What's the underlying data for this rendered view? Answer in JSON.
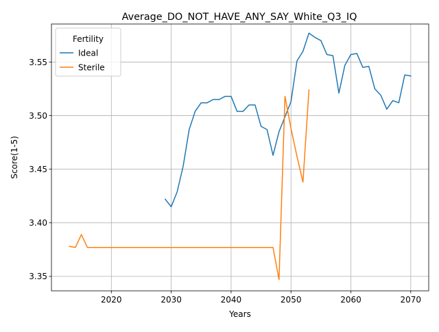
{
  "chart_data": {
    "type": "line",
    "title": "Average_DO_NOT_HAVE_ANY_SAY_White_Q3_IQ",
    "xlabel": "Years",
    "ylabel": "Score(1-5)",
    "xlim": [
      2010.0,
      2073.0
    ],
    "ylim": [
      3.3365,
      3.5855
    ],
    "xticks": [
      2020,
      2030,
      2040,
      2050,
      2060,
      2070
    ],
    "yticks": [
      3.35,
      3.4,
      3.45,
      3.5,
      3.55
    ],
    "ytick_labels": [
      "3.35",
      "3.40",
      "3.45",
      "3.50",
      "3.55"
    ],
    "grid": true,
    "legend": {
      "title": "Fertility",
      "placement": "top-left"
    },
    "series": [
      {
        "name": "Ideal",
        "color": "#1f77b4",
        "x": [
          2029,
          2030,
          2031,
          2032,
          2033,
          2034,
          2035,
          2036,
          2037,
          2038,
          2039,
          2040,
          2041,
          2042,
          2043,
          2044,
          2045,
          2046,
          2047,
          2048,
          2049,
          2050,
          2051,
          2052,
          2053,
          2054,
          2055,
          2056,
          2057,
          2058,
          2059,
          2060,
          2061,
          2062,
          2063,
          2064,
          2065,
          2066,
          2067,
          2068,
          2069,
          2070
        ],
        "y": [
          3.422,
          3.415,
          3.429,
          3.453,
          3.487,
          3.504,
          3.512,
          3.512,
          3.515,
          3.515,
          3.518,
          3.518,
          3.504,
          3.504,
          3.51,
          3.51,
          3.49,
          3.487,
          3.463,
          3.485,
          3.499,
          3.513,
          3.551,
          3.56,
          3.577,
          3.573,
          3.57,
          3.557,
          3.556,
          3.521,
          3.547,
          3.557,
          3.558,
          3.545,
          3.546,
          3.525,
          3.519,
          3.506,
          3.514,
          3.512,
          3.538,
          3.537
        ]
      },
      {
        "name": "Sterile",
        "color": "#ff7f0e",
        "x": [
          2013,
          2014,
          2015,
          2016,
          2017,
          2018,
          2019,
          2020,
          2021,
          2022,
          2023,
          2024,
          2025,
          2026,
          2027,
          2028,
          2029,
          2030,
          2031,
          2032,
          2033,
          2034,
          2035,
          2036,
          2037,
          2038,
          2039,
          2040,
          2041,
          2042,
          2043,
          2044,
          2045,
          2046,
          2047,
          2048,
          2049,
          2050,
          2051,
          2052,
          2053
        ],
        "y": [
          3.378,
          3.377,
          3.389,
          3.377,
          3.377,
          3.377,
          3.377,
          3.377,
          3.377,
          3.377,
          3.377,
          3.377,
          3.377,
          3.377,
          3.377,
          3.377,
          3.377,
          3.377,
          3.377,
          3.377,
          3.377,
          3.377,
          3.377,
          3.377,
          3.377,
          3.377,
          3.377,
          3.377,
          3.377,
          3.377,
          3.377,
          3.377,
          3.377,
          3.377,
          3.377,
          3.347,
          3.518,
          3.488,
          3.462,
          3.438,
          3.524
        ]
      }
    ]
  }
}
